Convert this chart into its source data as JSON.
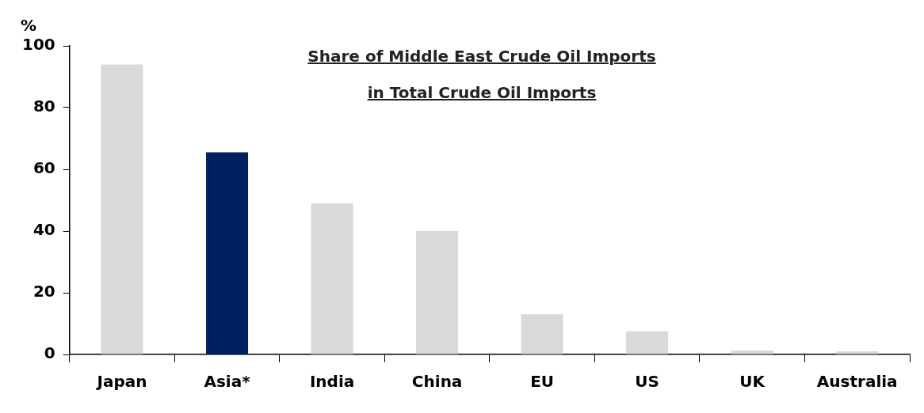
{
  "chart_data": {
    "type": "bar",
    "title": "Share of Middle East Crude Oil Imports in Total Crude Oil Imports",
    "ylabel": "%",
    "categories": [
      "Japan",
      "Asia*",
      "India",
      "China",
      "EU",
      "US",
      "UK",
      "Australia"
    ],
    "values": [
      94,
      65.5,
      49,
      40,
      13,
      7.5,
      1.3,
      1
    ],
    "colors": [
      "#d9d9d9",
      "#002060",
      "#d9d9d9",
      "#d9d9d9",
      "#d9d9d9",
      "#d9d9d9",
      "#d9d9d9",
      "#d9d9d9"
    ],
    "ylim": [
      0,
      100
    ],
    "yticks": [
      0,
      20,
      40,
      60,
      80,
      100
    ],
    "grid": false,
    "legend": false
  }
}
